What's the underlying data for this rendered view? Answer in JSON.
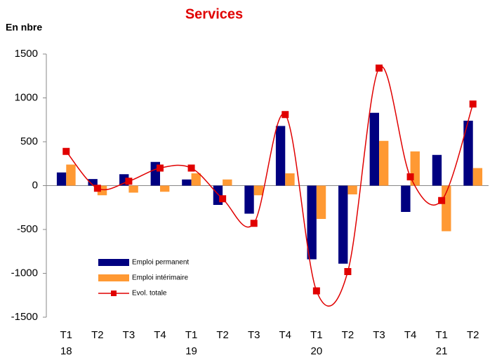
{
  "chart_data": {
    "type": "bar_line",
    "title": "Services",
    "y_label": "En nbre",
    "categories": [
      [
        "T1",
        "18"
      ],
      [
        "T2"
      ],
      [
        "T3"
      ],
      [
        "T4"
      ],
      [
        "T1",
        "19"
      ],
      [
        "T2"
      ],
      [
        "T3"
      ],
      [
        "T4"
      ],
      [
        "T1",
        "20"
      ],
      [
        "T2"
      ],
      [
        "T3"
      ],
      [
        "T4"
      ],
      [
        "T1",
        "21"
      ],
      [
        "T2"
      ]
    ],
    "series": [
      {
        "name": "Emploi permanent",
        "type": "bar",
        "color": "#000080",
        "values": [
          150,
          75,
          130,
          270,
          70,
          -220,
          -320,
          680,
          -840,
          -890,
          830,
          -300,
          350,
          740
        ]
      },
      {
        "name": "Emploi intérimaire",
        "type": "bar",
        "color": "#ff9933",
        "values": [
          240,
          -110,
          -80,
          -70,
          140,
          70,
          -110,
          140,
          -380,
          -100,
          510,
          390,
          -520,
          200
        ]
      },
      {
        "name": "Evol. totale",
        "type": "line",
        "color": "#e00000",
        "values": [
          390,
          -30,
          50,
          200,
          200,
          -150,
          -430,
          810,
          -1200,
          -980,
          1340,
          100,
          -170,
          930
        ]
      }
    ],
    "ylim": [
      -1500,
      1500
    ],
    "yticks": [
      -1500,
      -1000,
      -500,
      0,
      500,
      1000,
      1500
    ],
    "grid": false,
    "legend": "lower left"
  }
}
